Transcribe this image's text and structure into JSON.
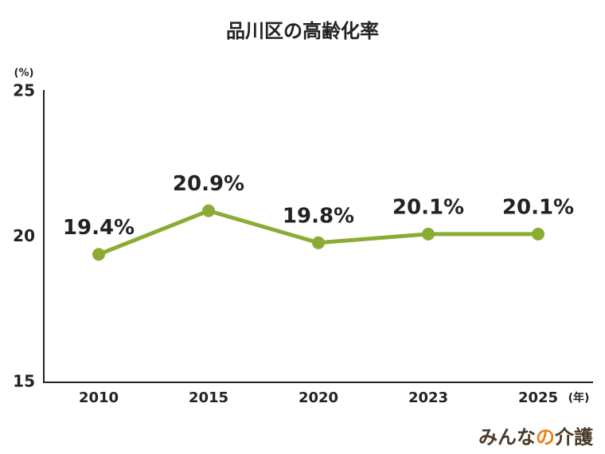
{
  "chart_data": {
    "type": "line",
    "title": "品川区の高齢化率",
    "y_unit": "(%)",
    "x_unit": "(年)",
    "categories": [
      "2010",
      "2015",
      "2020",
      "2023",
      "2025"
    ],
    "values": [
      19.4,
      20.9,
      19.8,
      20.1,
      20.1
    ],
    "value_labels": [
      "19.4%",
      "20.9%",
      "19.8%",
      "20.1%",
      "20.1%"
    ],
    "color": "#8aac34",
    "ylim": [
      15,
      25
    ],
    "yticks": [
      15,
      20,
      25
    ],
    "grid": false
  },
  "logo": {
    "parts": [
      "みんな",
      "の",
      "介護"
    ],
    "colors": [
      "#4a3a2a",
      "#e8821e",
      "#4a3a2a"
    ]
  }
}
